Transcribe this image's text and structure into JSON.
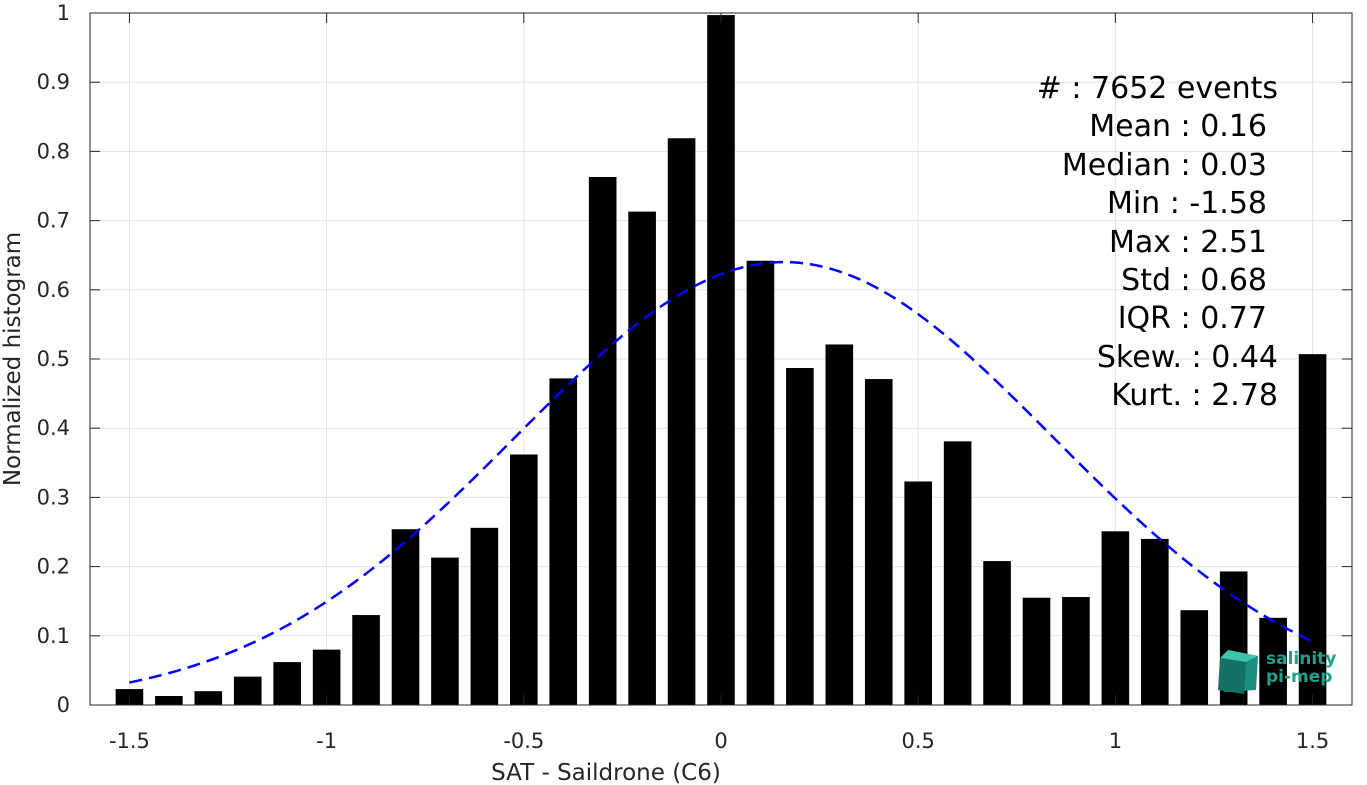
{
  "chart_data": {
    "type": "bar",
    "xlabel": "SAT - Saildrone (C6)",
    "ylabel": "Normalized histogram",
    "xlim": [
      -1.6,
      1.6
    ],
    "ylim": [
      0,
      1
    ],
    "x_ticks": [
      -1.5,
      -1,
      -0.5,
      0,
      0.5,
      1,
      1.5
    ],
    "x_tick_labels": [
      "-1.5",
      "-1",
      "-0.5",
      "0",
      "0.5",
      "1",
      "1.5"
    ],
    "y_ticks": [
      0,
      0.1,
      0.2,
      0.3,
      0.4,
      0.5,
      0.6,
      0.7,
      0.8,
      0.9,
      1
    ],
    "y_tick_labels": [
      "0",
      "0.1",
      "0.2",
      "0.3",
      "0.4",
      "0.5",
      "0.6",
      "0.7",
      "0.8",
      "0.9",
      "1"
    ],
    "grid": true,
    "bar_color": "#000000",
    "bars": {
      "x": [
        -1.5,
        -1.4,
        -1.3,
        -1.2,
        -1.1,
        -1.0,
        -0.9,
        -0.8,
        -0.7,
        -0.6,
        -0.5,
        -0.4,
        -0.3,
        -0.2,
        -0.1,
        0.0,
        0.1,
        0.2,
        0.3,
        0.4,
        0.5,
        0.6,
        0.7,
        0.8,
        0.9,
        1.0,
        1.1,
        1.2,
        1.3,
        1.4,
        1.5
      ],
      "values": [
        0.023,
        0.013,
        0.02,
        0.041,
        0.062,
        0.08,
        0.13,
        0.254,
        0.213,
        0.256,
        0.362,
        0.472,
        0.763,
        0.713,
        0.819,
        0.997,
        0.642,
        0.487,
        0.521,
        0.471,
        0.323,
        0.381,
        0.208,
        0.155,
        0.156,
        0.251,
        0.24,
        0.137,
        0.193,
        0.126,
        0.507
      ]
    },
    "fit_curve": {
      "type": "gaussian",
      "style": "dashed",
      "color": "#0000ff",
      "mean": 0.16,
      "std": 0.68,
      "peak": 0.64,
      "x_range": [
        -1.5,
        1.5
      ]
    }
  },
  "stats": {
    "count": "#  : 7652 events",
    "mean": "Mean : 0.16",
    "median": "Median : 0.03",
    "min": "Min : -1.58",
    "max": "Max : 2.51",
    "std": "Std : 0.68",
    "iqr": "IQR : 0.77",
    "skew": "Skew. : 0.44",
    "kurt": "Kurt. : 2.78"
  },
  "logo": {
    "line1": "salinity",
    "line2": "pi-mep"
  }
}
